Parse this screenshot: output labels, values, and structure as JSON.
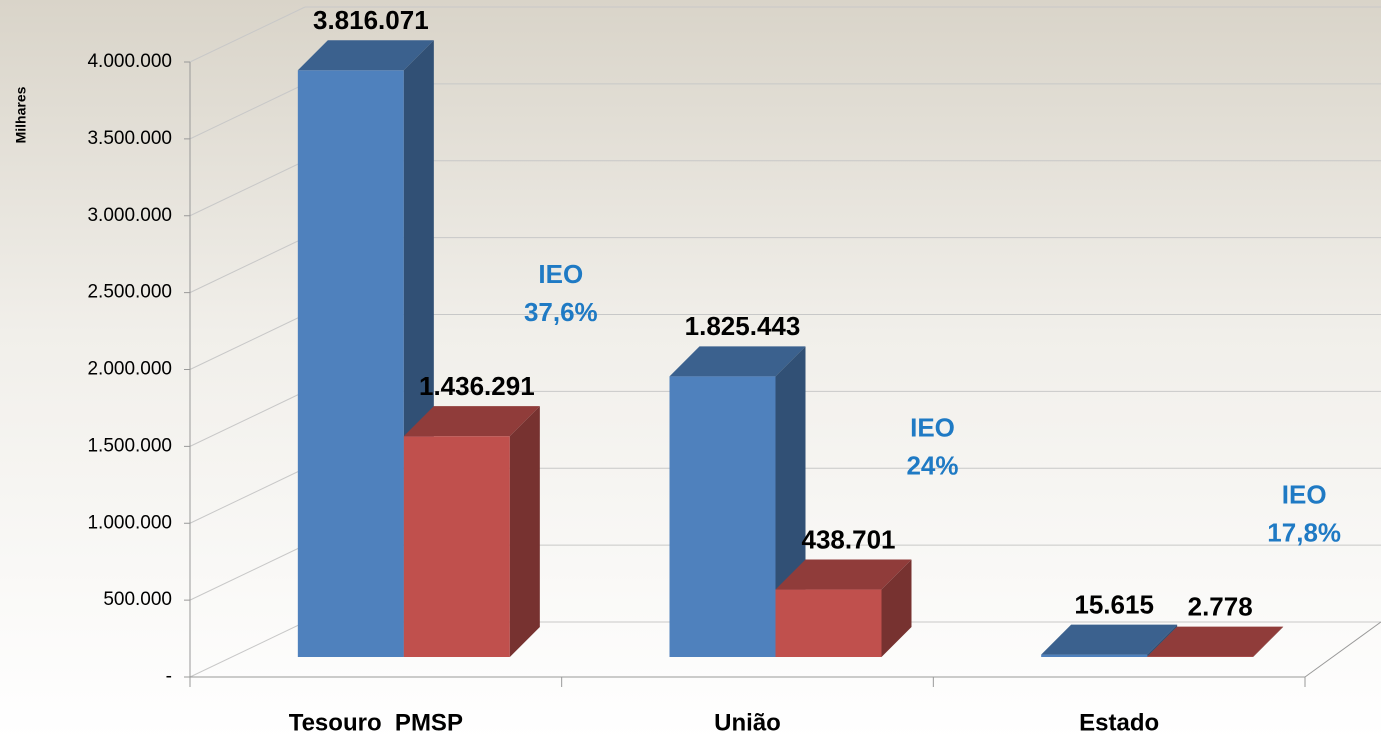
{
  "chart_data": {
    "type": "bar3d",
    "y_label": "Milhares",
    "categories": [
      "Tesouro  PMSP",
      "União",
      "Estado"
    ],
    "series": [
      {
        "color": "#4f81bd",
        "values": [
          3816071,
          1825443,
          15615
        ],
        "value_labels": [
          "3.816.071",
          "1.825.443",
          "15.615"
        ]
      },
      {
        "color": "#c0504d",
        "values": [
          1436291,
          438701,
          2778
        ],
        "value_labels": [
          "1.436.291",
          "438.701",
          "2.778"
        ]
      }
    ],
    "annotations": [
      [
        "IEO",
        "37,6%"
      ],
      [
        "IEO",
        "24%"
      ],
      [
        "IEO",
        "17,8%"
      ]
    ],
    "annotation_color": "#1f7ac4",
    "ylim": [
      0,
      4000000
    ],
    "yticks": [
      {
        "value": 0,
        "label": "-"
      },
      {
        "value": 500000,
        "label": "500.000"
      },
      {
        "value": 1000000,
        "label": "1.000.000"
      },
      {
        "value": 1500000,
        "label": "1.500.000"
      },
      {
        "value": 2000000,
        "label": "2.000.000"
      },
      {
        "value": 2500000,
        "label": "2.500.000"
      },
      {
        "value": 3000000,
        "label": "3.000.000"
      },
      {
        "value": 3500000,
        "label": "3.500.000"
      },
      {
        "value": 4000000,
        "label": "4.000.000"
      }
    ],
    "grid": true
  }
}
